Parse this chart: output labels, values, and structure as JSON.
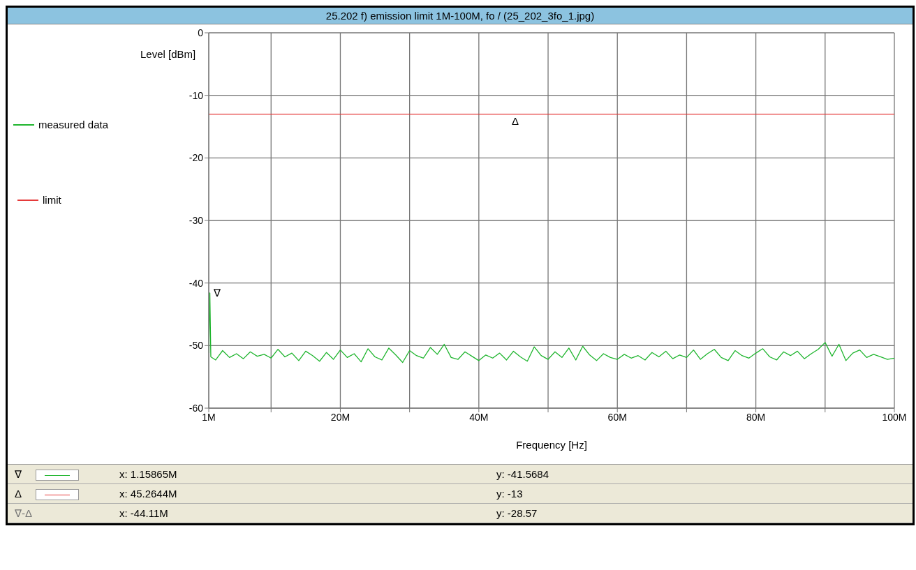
{
  "chart_data": {
    "type": "line",
    "title": "25.202 f) emission limit 1M-100M, fo / (25_202_3fo_1.jpg)",
    "xlabel": "Frequency [Hz]",
    "ylabel": "Level [dBm]",
    "xlim": [
      1000000,
      100000000
    ],
    "xticks": [
      {
        "value": 1000000,
        "label": "1M"
      },
      {
        "value": 10000000,
        "label": null
      },
      {
        "value": 20000000,
        "label": "20M"
      },
      {
        "value": 30000000,
        "label": null
      },
      {
        "value": 40000000,
        "label": "40M"
      },
      {
        "value": 50000000,
        "label": null
      },
      {
        "value": 60000000,
        "label": "60M"
      },
      {
        "value": 70000000,
        "label": null
      },
      {
        "value": 80000000,
        "label": "80M"
      },
      {
        "value": 90000000,
        "label": null
      },
      {
        "value": 100000000,
        "label": "100M"
      }
    ],
    "ylim": [
      -60,
      0
    ],
    "yticks": [
      -60,
      -50,
      -40,
      -30,
      -20,
      -10,
      0
    ],
    "grid": true,
    "legend": "left",
    "series": [
      {
        "name": "measured data",
        "color": "#1fb52e",
        "x": [
          1000000,
          1158650,
          1300000,
          2000000,
          3000000,
          4000000,
          5000000,
          6000000,
          7000000,
          8000000,
          9000000,
          10000000,
          11000000,
          12000000,
          13000000,
          14000000,
          15000000,
          16000000,
          17000000,
          18000000,
          19000000,
          20000000,
          21000000,
          22000000,
          23000000,
          24000000,
          25000000,
          26000000,
          27000000,
          28000000,
          29000000,
          30000000,
          31000000,
          32000000,
          33000000,
          34000000,
          35000000,
          36000000,
          37000000,
          38000000,
          39000000,
          40000000,
          41000000,
          42000000,
          43000000,
          44000000,
          45000000,
          46000000,
          47000000,
          48000000,
          49000000,
          50000000,
          51000000,
          52000000,
          53000000,
          54000000,
          55000000,
          56000000,
          57000000,
          58000000,
          59000000,
          60000000,
          61000000,
          62000000,
          63000000,
          64000000,
          65000000,
          66000000,
          67000000,
          68000000,
          69000000,
          70000000,
          71000000,
          72000000,
          73000000,
          74000000,
          75000000,
          76000000,
          77000000,
          78000000,
          79000000,
          80000000,
          81000000,
          82000000,
          83000000,
          84000000,
          85000000,
          86000000,
          87000000,
          88000000,
          89000000,
          90000000,
          91000000,
          92000000,
          93000000,
          94000000,
          95000000,
          96000000,
          97000000,
          98000000,
          99000000,
          100000000
        ],
        "values": [
          -51.2,
          -41.6,
          -51.8,
          -52.3,
          -50.8,
          -51.9,
          -51.3,
          -52.1,
          -51.0,
          -51.7,
          -51.4,
          -52.0,
          -50.6,
          -51.8,
          -51.2,
          -52.4,
          -50.9,
          -51.6,
          -52.5,
          -51.1,
          -52.2,
          -50.7,
          -51.9,
          -51.3,
          -52.6,
          -50.5,
          -51.8,
          -52.3,
          -50.4,
          -51.5,
          -52.7,
          -50.8,
          -51.6,
          -52.0,
          -50.3,
          -51.4,
          -49.8,
          -51.9,
          -52.2,
          -51.0,
          -51.7,
          -52.4,
          -51.5,
          -52.0,
          -51.2,
          -52.3,
          -50.9,
          -51.8,
          -52.5,
          -50.2,
          -51.6,
          -52.2,
          -51.0,
          -51.9,
          -50.4,
          -52.3,
          -50.1,
          -51.5,
          -52.4,
          -51.3,
          -51.9,
          -52.2,
          -51.4,
          -52.0,
          -51.6,
          -52.3,
          -51.1,
          -51.8,
          -50.9,
          -52.1,
          -51.5,
          -51.9,
          -50.7,
          -52.2,
          -51.3,
          -50.6,
          -51.9,
          -52.4,
          -50.8,
          -51.6,
          -52.0,
          -51.2,
          -50.5,
          -51.8,
          -52.3,
          -51.0,
          -51.6,
          -50.9,
          -52.1,
          -51.3,
          -50.6,
          -49.5,
          -51.7,
          -49.8,
          -52.4,
          -51.2,
          -50.7,
          -51.9,
          -51.4,
          -51.8,
          -52.2,
          -52.0
        ]
      },
      {
        "name": "limit",
        "color": "#e53a3a",
        "x": [
          1000000,
          100000000
        ],
        "values": [
          -13,
          -13
        ]
      }
    ],
    "annotations": [
      {
        "text": "∇",
        "x": 1158650,
        "y": -41.5684
      },
      {
        "text": "Δ",
        "x": 45264400,
        "y": -13
      },
      "∇",
      "x: 1.15865M",
      "y: -41.5684",
      "Δ",
      "x: 45.2644M",
      "y: -13",
      "∇-Δ",
      "x: -44.11M",
      "y: -28.57"
    ]
  }
}
